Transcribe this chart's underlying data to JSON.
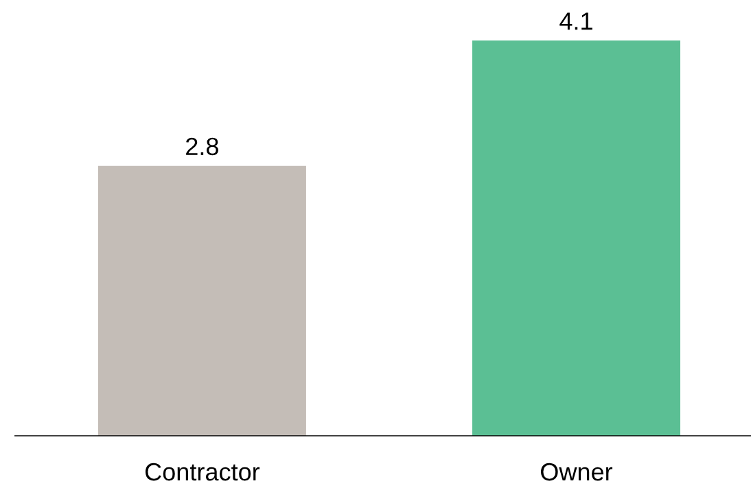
{
  "chart_data": {
    "type": "bar",
    "categories": [
      "Contractor",
      "Owner"
    ],
    "values": [
      2.8,
      4.1
    ],
    "colors": [
      "#c4bdb7",
      "#5bbf94"
    ],
    "data_labels": true,
    "grid": false
  }
}
